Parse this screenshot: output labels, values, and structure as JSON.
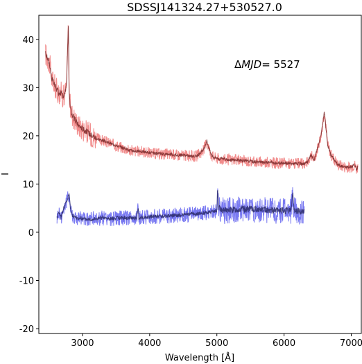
{
  "chart_data": {
    "type": "line",
    "title": "SDSSJ141324.27+530527.0",
    "xlabel": "Wavelength [Å]",
    "ylabel": "I",
    "xlim": [
      2350,
      7150
    ],
    "ylim": [
      -21,
      45
    ],
    "x_ticks": [
      3000,
      4000,
      5000,
      6000,
      7000
    ],
    "y_ticks": [
      -20,
      -10,
      0,
      10,
      20,
      30,
      40
    ],
    "grid": false,
    "annotation": {
      "prefix": "Δ",
      "italic": "MJD",
      "suffix": "= 5527"
    },
    "series": [
      {
        "color": "#f08080",
        "smooth_color": "#7a2a2a",
        "x": [
          2450,
          2480,
          2510,
          2540,
          2570,
          2600,
          2640,
          2680,
          2720,
          2760,
          2790,
          2800,
          2810,
          2830,
          2860,
          2900,
          2950,
          3000,
          3100,
          3200,
          3300,
          3400,
          3500,
          3600,
          3700,
          3800,
          3900,
          4000,
          4100,
          4200,
          4300,
          4400,
          4500,
          4600,
          4700,
          4800,
          4850,
          4880,
          4920,
          4960,
          5000,
          5010,
          5030,
          5100,
          5200,
          5300,
          5400,
          5500,
          5600,
          5700,
          5800,
          5900,
          6000,
          6100,
          6200,
          6300,
          6350,
          6400,
          6450,
          6500,
          6550,
          6580,
          6600,
          6650,
          6700,
          6800,
          6900,
          7000,
          7050,
          7080,
          7100
        ],
        "y": [
          37,
          36,
          35,
          32,
          31,
          30,
          29,
          29,
          28,
          30,
          43,
          30,
          27,
          25,
          24,
          23,
          22,
          21.5,
          20.5,
          19.5,
          19,
          18.5,
          18,
          17.5,
          17,
          16.8,
          16.7,
          16.5,
          16.3,
          16.2,
          16.2,
          16,
          16,
          15.8,
          15.8,
          17,
          19,
          17.5,
          16,
          15.5,
          15.5,
          15.3,
          15.2,
          15.2,
          15,
          15,
          14.8,
          14.7,
          14.6,
          14.5,
          14.5,
          14.3,
          14.3,
          14.3,
          14.2,
          14.2,
          14.5,
          16,
          15,
          17.5,
          20,
          23,
          25,
          18,
          16,
          14,
          13.5,
          13.5,
          14,
          13,
          13.5
        ]
      },
      {
        "color": "#6a6af0",
        "smooth_color": "#2a2a6a",
        "x": [
          2620,
          2640,
          2660,
          2680,
          2700,
          2720,
          2750,
          2780,
          2800,
          2820,
          2850,
          2900,
          3000,
          3100,
          3200,
          3300,
          3400,
          3500,
          3600,
          3700,
          3800,
          3830,
          3840,
          3850,
          3900,
          4000,
          4100,
          4200,
          4300,
          4400,
          4500,
          4600,
          4700,
          4800,
          4900,
          5000,
          5010,
          5030,
          5100,
          5200,
          5300,
          5400,
          5500,
          5600,
          5700,
          5800,
          5900,
          6000,
          6100,
          6130,
          6150,
          6200,
          6250,
          6300
        ],
        "y": [
          3,
          4,
          4,
          3,
          4,
          5,
          6,
          7,
          8,
          5,
          3.5,
          3,
          2.8,
          2.7,
          2.8,
          3,
          2.8,
          2.9,
          3,
          3,
          3,
          5,
          2.5,
          3,
          3,
          3.2,
          3.3,
          3.3,
          3.4,
          3.5,
          3.6,
          3.7,
          3.8,
          4,
          4.2,
          4.5,
          9,
          5,
          4.5,
          4.6,
          4.7,
          4.8,
          4.8,
          4.8,
          4.7,
          4.6,
          4.5,
          4.5,
          4.5,
          8,
          4.5,
          4.4,
          4.3,
          4.2
        ]
      }
    ]
  }
}
